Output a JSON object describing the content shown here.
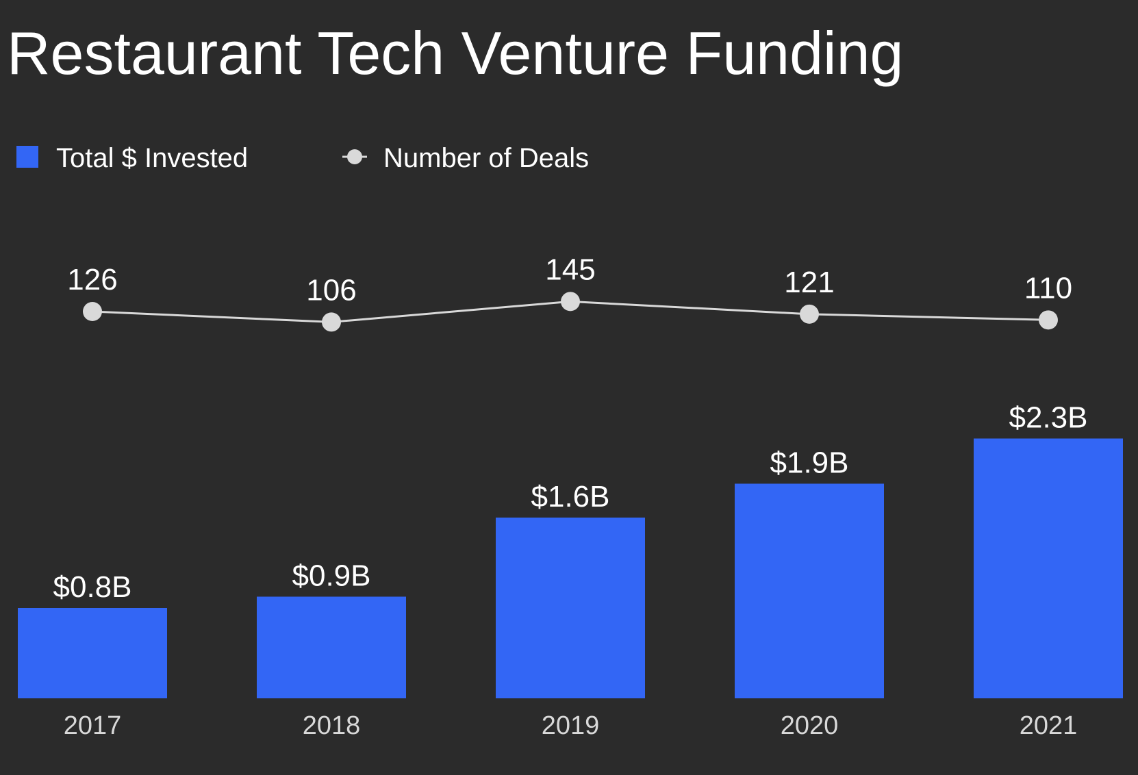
{
  "chart_data": {
    "type": "bar",
    "title": "Restaurant Tech Venture Funding",
    "categories": [
      "2017",
      "2018",
      "2019",
      "2020",
      "2021"
    ],
    "series": [
      {
        "name": "Total $ Invested",
        "type": "bar",
        "values": [
          0.8,
          0.9,
          1.6,
          1.9,
          2.3
        ],
        "labels": [
          "$0.8B",
          "$0.9B",
          "$1.6B",
          "$1.9B",
          "$2.3B"
        ],
        "color": "#3366f5"
      },
      {
        "name": "Number of Deals",
        "type": "line",
        "values": [
          126,
          106,
          145,
          121,
          110
        ],
        "labels": [
          "126",
          "106",
          "145",
          "121",
          "110"
        ],
        "color": "#d9d9d9"
      }
    ],
    "legend_position": "top-left",
    "grid": false
  },
  "colors": {
    "background": "#2b2b2b",
    "bar": "#3366f5",
    "line": "#d9d9d9",
    "text": "#ffffff",
    "tick": "#d9d9d9"
  }
}
